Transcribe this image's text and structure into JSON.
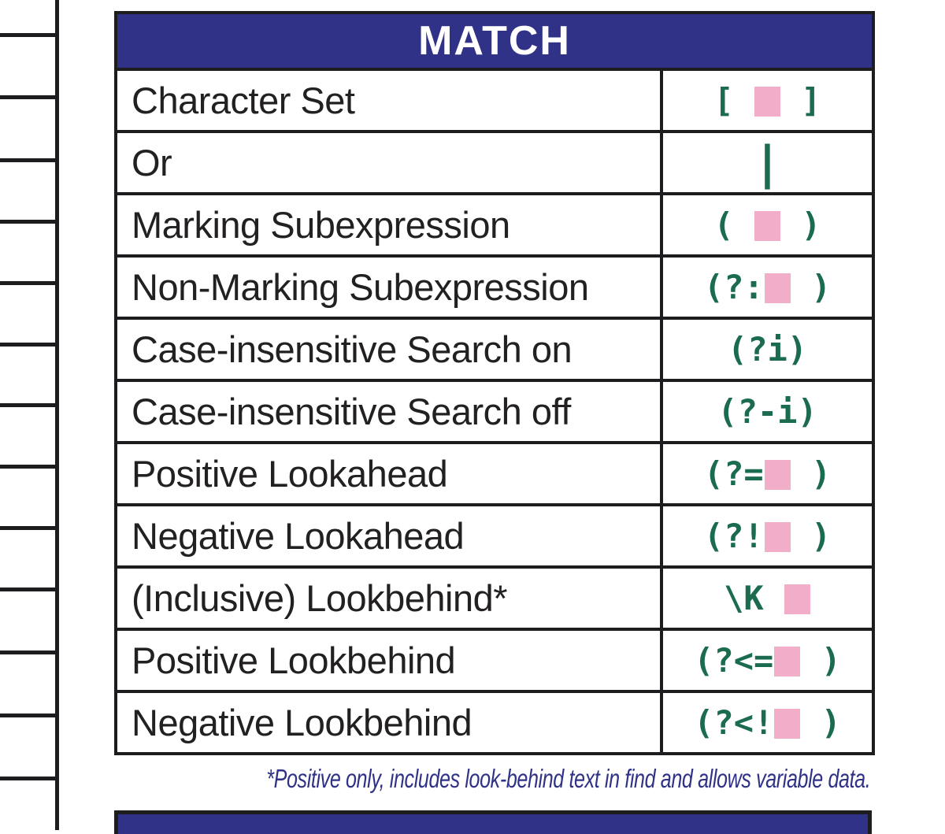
{
  "colors": {
    "navy": "#2f3286",
    "green": "#1b6b4f",
    "pink": "#f2adc8",
    "border": "#1d1d1f",
    "label_text": "#232020"
  },
  "match_table": {
    "title": "MATCH",
    "placeholder_symbol": "pink-square",
    "rows": [
      {
        "label": "Character Set",
        "code": "[ ■ ]"
      },
      {
        "label": "Or",
        "code": "|"
      },
      {
        "label": "Marking Subexpression",
        "code": "( ■ )"
      },
      {
        "label": "Non-Marking Subexpression",
        "code": "(?:■ )"
      },
      {
        "label": "Case-insensitive Search on",
        "code": "(?i)"
      },
      {
        "label": "Case-insensitive Search off",
        "code": "(?-i)"
      },
      {
        "label": "Positive Lookahead",
        "code": "(?=■ )"
      },
      {
        "label": "Negative Lookahead",
        "code": "(?!■ )"
      },
      {
        "label": "(Inclusive) Lookbehind*",
        "code": "\\K ■"
      },
      {
        "label": "Positive Lookbehind",
        "code": "(?<=■ )"
      },
      {
        "label": "Negative Lookbehind",
        "code": "(?<!■ )"
      }
    ],
    "footnote": "*Positive only, includes look-behind text in find and allows variable data."
  }
}
